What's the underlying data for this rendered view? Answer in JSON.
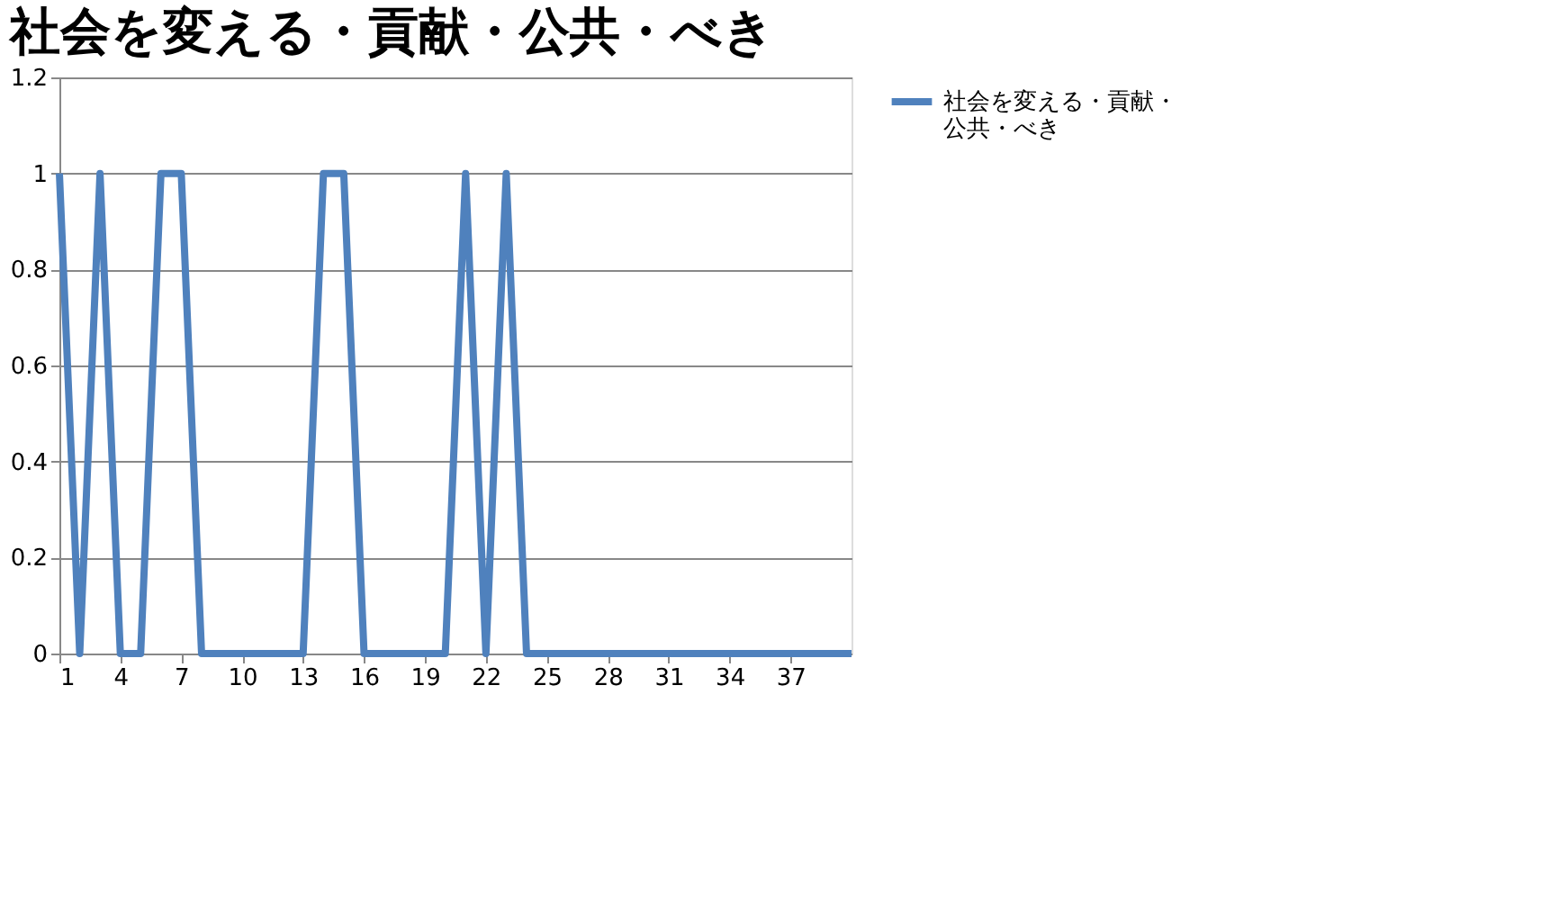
{
  "chart_data": {
    "type": "line",
    "title": "社会を変える・貢献・公共・べき",
    "categories": [
      "1",
      null,
      null,
      "4",
      null,
      null,
      "7",
      null,
      null,
      "10",
      null,
      null,
      "13",
      null,
      null,
      "16",
      null,
      null,
      "19",
      null,
      null,
      "22",
      null,
      null,
      "25",
      null,
      null,
      "28",
      null,
      null,
      "31",
      null,
      null,
      "34",
      null,
      null,
      "37",
      null,
      null,
      null
    ],
    "series": [
      {
        "name": "社会を変える・貢献・公共・べき",
        "color": "#4f81bd",
        "values": [
          1,
          0,
          1,
          0,
          0,
          1,
          1,
          0,
          0,
          0,
          0,
          0,
          0,
          1,
          1,
          0,
          0,
          0,
          0,
          0,
          1,
          0,
          1,
          0,
          0,
          0,
          0,
          0,
          0,
          0,
          0,
          0,
          0,
          0,
          0,
          0,
          0,
          0,
          0,
          0
        ]
      }
    ],
    "ylim": [
      0,
      1.2
    ],
    "yticks": [
      0,
      0.2,
      0.4,
      0.6,
      0.8,
      1,
      1.2
    ],
    "grid": "y",
    "legend": "right",
    "line_style": "solid",
    "marker": "none"
  }
}
